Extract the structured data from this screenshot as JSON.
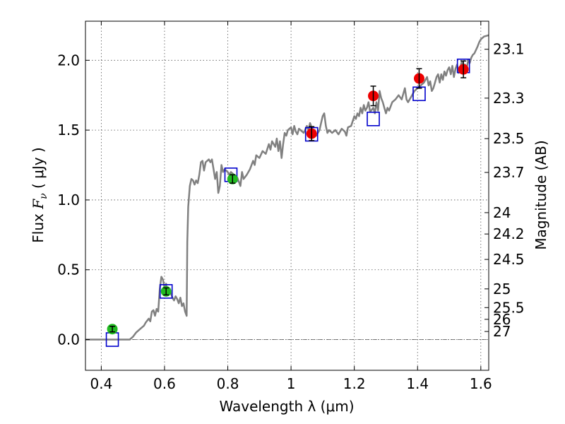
{
  "chart_data": {
    "type": "scatter",
    "xlabel": "Wavelength  λ (μm)",
    "ylabel_text": "Flux ",
    "ylabel_italic": "F",
    "ylabel_sub": "ν",
    "ylabel_unit": " ( μJy )",
    "ylabel2": "Magnitude (AB)",
    "xlim": [
      0.35,
      1.625
    ],
    "ylim": [
      -0.22,
      2.28
    ],
    "grid": true,
    "x_ticks": [
      {
        "value": 0.4,
        "label": "0.4"
      },
      {
        "value": 0.6,
        "label": "0.6"
      },
      {
        "value": 0.8,
        "label": "0.8"
      },
      {
        "value": 1.0,
        "label": "1"
      },
      {
        "value": 1.2,
        "label": "1.2"
      },
      {
        "value": 1.4,
        "label": "1.4"
      },
      {
        "value": 1.6,
        "label": "1.6"
      }
    ],
    "y_ticks": [
      {
        "value": 0.0,
        "label": "0.0"
      },
      {
        "value": 0.5,
        "label": "0.5"
      },
      {
        "value": 1.0,
        "label": "1.0"
      },
      {
        "value": 1.5,
        "label": "1.5"
      },
      {
        "value": 2.0,
        "label": "2.0"
      }
    ],
    "mag_ticks": [
      {
        "label": "23.1",
        "flux": 2.079
      },
      {
        "label": "23.3",
        "flux": 1.729
      },
      {
        "label": "23.5",
        "flux": 1.439
      },
      {
        "label": "23.7",
        "flux": 1.197
      },
      {
        "label": "24",
        "flux": 0.909
      },
      {
        "label": "24.2",
        "flux": 0.756
      },
      {
        "label": "24.5",
        "flux": 0.574
      },
      {
        "label": "25",
        "flux": 0.363
      },
      {
        "label": "25.5",
        "flux": 0.229
      },
      {
        "label": "26",
        "flux": 0.145
      },
      {
        "label": "27",
        "flux": 0.058
      }
    ],
    "zero_line": 0.0,
    "colors": {
      "spectrum": "#808080",
      "model": "#0000cc",
      "green": "#22bb22",
      "red": "#ee0000",
      "errorbar": "#000000",
      "grid": "#555555"
    },
    "spectrum": [
      [
        0.35,
        0.0
      ],
      [
        0.49,
        0.0
      ],
      [
        0.5,
        0.02
      ],
      [
        0.51,
        0.05
      ],
      [
        0.52,
        0.07
      ],
      [
        0.535,
        0.1
      ],
      [
        0.54,
        0.12
      ],
      [
        0.55,
        0.15
      ],
      [
        0.555,
        0.13
      ],
      [
        0.56,
        0.2
      ],
      [
        0.565,
        0.21
      ],
      [
        0.57,
        0.17
      ],
      [
        0.575,
        0.22
      ],
      [
        0.58,
        0.2
      ],
      [
        0.585,
        0.36
      ],
      [
        0.59,
        0.45
      ],
      [
        0.595,
        0.43
      ],
      [
        0.6,
        0.37
      ],
      [
        0.605,
        0.4
      ],
      [
        0.61,
        0.32
      ],
      [
        0.615,
        0.36
      ],
      [
        0.62,
        0.33
      ],
      [
        0.625,
        0.3
      ],
      [
        0.63,
        0.28
      ],
      [
        0.635,
        0.31
      ],
      [
        0.64,
        0.29
      ],
      [
        0.645,
        0.26
      ],
      [
        0.65,
        0.3
      ],
      [
        0.655,
        0.24
      ],
      [
        0.66,
        0.26
      ],
      [
        0.665,
        0.2
      ],
      [
        0.67,
        0.17
      ],
      [
        0.672,
        0.7
      ],
      [
        0.675,
        0.95
      ],
      [
        0.68,
        1.1
      ],
      [
        0.685,
        1.15
      ],
      [
        0.69,
        1.14
      ],
      [
        0.695,
        1.11
      ],
      [
        0.7,
        1.14
      ],
      [
        0.705,
        1.12
      ],
      [
        0.71,
        1.18
      ],
      [
        0.715,
        1.27
      ],
      [
        0.72,
        1.28
      ],
      [
        0.725,
        1.21
      ],
      [
        0.73,
        1.27
      ],
      [
        0.74,
        1.29
      ],
      [
        0.745,
        1.27
      ],
      [
        0.75,
        1.29
      ],
      [
        0.755,
        1.22
      ],
      [
        0.76,
        1.15
      ],
      [
        0.765,
        1.2
      ],
      [
        0.77,
        1.05
      ],
      [
        0.775,
        1.1
      ],
      [
        0.78,
        1.25
      ],
      [
        0.785,
        1.2
      ],
      [
        0.79,
        1.22
      ],
      [
        0.8,
        1.2
      ],
      [
        0.805,
        1.18
      ],
      [
        0.81,
        1.2
      ],
      [
        0.82,
        1.18
      ],
      [
        0.83,
        1.16
      ],
      [
        0.84,
        1.1
      ],
      [
        0.845,
        1.2
      ],
      [
        0.85,
        1.15
      ],
      [
        0.86,
        1.18
      ],
      [
        0.87,
        1.22
      ],
      [
        0.88,
        1.28
      ],
      [
        0.885,
        1.25
      ],
      [
        0.89,
        1.32
      ],
      [
        0.9,
        1.3
      ],
      [
        0.91,
        1.35
      ],
      [
        0.92,
        1.33
      ],
      [
        0.93,
        1.4
      ],
      [
        0.935,
        1.36
      ],
      [
        0.94,
        1.42
      ],
      [
        0.95,
        1.38
      ],
      [
        0.955,
        1.44
      ],
      [
        0.96,
        1.35
      ],
      [
        0.965,
        1.42
      ],
      [
        0.97,
        1.3
      ],
      [
        0.975,
        1.4
      ],
      [
        0.98,
        1.48
      ],
      [
        0.985,
        1.46
      ],
      [
        0.99,
        1.5
      ],
      [
        1.0,
        1.52
      ],
      [
        1.005,
        1.47
      ],
      [
        1.01,
        1.53
      ],
      [
        1.015,
        1.49
      ],
      [
        1.02,
        1.47
      ],
      [
        1.025,
        1.51
      ],
      [
        1.03,
        1.5
      ],
      [
        1.04,
        1.48
      ],
      [
        1.05,
        1.53
      ],
      [
        1.055,
        1.5
      ],
      [
        1.06,
        1.55
      ],
      [
        1.065,
        1.52
      ],
      [
        1.07,
        1.48
      ],
      [
        1.075,
        1.5
      ],
      [
        1.08,
        1.46
      ],
      [
        1.09,
        1.5
      ],
      [
        1.095,
        1.55
      ],
      [
        1.1,
        1.6
      ],
      [
        1.105,
        1.62
      ],
      [
        1.11,
        1.53
      ],
      [
        1.115,
        1.48
      ],
      [
        1.12,
        1.5
      ],
      [
        1.13,
        1.48
      ],
      [
        1.14,
        1.5
      ],
      [
        1.15,
        1.47
      ],
      [
        1.16,
        1.51
      ],
      [
        1.17,
        1.49
      ],
      [
        1.175,
        1.46
      ],
      [
        1.18,
        1.52
      ],
      [
        1.19,
        1.53
      ],
      [
        1.2,
        1.6
      ],
      [
        1.205,
        1.58
      ],
      [
        1.21,
        1.62
      ],
      [
        1.215,
        1.6
      ],
      [
        1.22,
        1.66
      ],
      [
        1.225,
        1.62
      ],
      [
        1.23,
        1.68
      ],
      [
        1.235,
        1.64
      ],
      [
        1.24,
        1.66
      ],
      [
        1.245,
        1.7
      ],
      [
        1.25,
        1.63
      ],
      [
        1.26,
        1.66
      ],
      [
        1.265,
        1.62
      ],
      [
        1.27,
        1.7
      ],
      [
        1.275,
        1.64
      ],
      [
        1.28,
        1.78
      ],
      [
        1.285,
        1.73
      ],
      [
        1.29,
        1.7
      ],
      [
        1.295,
        1.66
      ],
      [
        1.3,
        1.62
      ],
      [
        1.305,
        1.66
      ],
      [
        1.31,
        1.64
      ],
      [
        1.32,
        1.7
      ],
      [
        1.33,
        1.72
      ],
      [
        1.34,
        1.75
      ],
      [
        1.35,
        1.72
      ],
      [
        1.36,
        1.8
      ],
      [
        1.365,
        1.72
      ],
      [
        1.37,
        1.7
      ],
      [
        1.38,
        1.74
      ],
      [
        1.39,
        1.78
      ],
      [
        1.4,
        1.8
      ],
      [
        1.41,
        1.82
      ],
      [
        1.42,
        1.84
      ],
      [
        1.425,
        1.86
      ],
      [
        1.43,
        1.88
      ],
      [
        1.435,
        1.82
      ],
      [
        1.44,
        1.85
      ],
      [
        1.445,
        1.78
      ],
      [
        1.45,
        1.8
      ],
      [
        1.455,
        1.84
      ],
      [
        1.46,
        1.88
      ],
      [
        1.465,
        1.9
      ],
      [
        1.47,
        1.84
      ],
      [
        1.475,
        1.9
      ],
      [
        1.48,
        1.86
      ],
      [
        1.485,
        1.92
      ],
      [
        1.49,
        1.89
      ],
      [
        1.495,
        1.93
      ],
      [
        1.5,
        1.95
      ],
      [
        1.505,
        1.9
      ],
      [
        1.51,
        1.96
      ],
      [
        1.515,
        1.88
      ],
      [
        1.52,
        1.94
      ],
      [
        1.525,
        1.97
      ],
      [
        1.53,
        1.91
      ],
      [
        1.535,
        1.95
      ],
      [
        1.54,
        1.99
      ],
      [
        1.545,
        1.95
      ],
      [
        1.55,
        1.97
      ],
      [
        1.555,
        1.94
      ],
      [
        1.56,
        2.0
      ],
      [
        1.565,
        1.98
      ],
      [
        1.57,
        2.02
      ],
      [
        1.575,
        2.04
      ],
      [
        1.58,
        2.05
      ],
      [
        1.59,
        2.1
      ],
      [
        1.595,
        2.13
      ],
      [
        1.6,
        2.15
      ],
      [
        1.61,
        2.17
      ],
      [
        1.625,
        2.18
      ]
    ],
    "model_points": [
      {
        "x": 0.435,
        "y": 0.0
      },
      {
        "x": 0.605,
        "y": 0.345
      },
      {
        "x": 0.81,
        "y": 1.18
      },
      {
        "x": 1.065,
        "y": 1.47
      },
      {
        "x": 1.26,
        "y": 1.58
      },
      {
        "x": 1.405,
        "y": 1.76
      },
      {
        "x": 1.545,
        "y": 1.96
      }
    ],
    "observed_points": [
      {
        "x": 0.435,
        "y": 0.075,
        "err": 0.02,
        "color": "green"
      },
      {
        "x": 0.605,
        "y": 0.345,
        "err": 0.025,
        "color": "green"
      },
      {
        "x": 0.815,
        "y": 1.15,
        "err": 0.03,
        "color": "green"
      },
      {
        "x": 1.065,
        "y": 1.475,
        "err": 0.05,
        "color": "red"
      },
      {
        "x": 1.26,
        "y": 1.745,
        "err": 0.07,
        "color": "red"
      },
      {
        "x": 1.405,
        "y": 1.87,
        "err": 0.07,
        "color": "red"
      },
      {
        "x": 1.545,
        "y": 1.935,
        "err": 0.06,
        "color": "red"
      }
    ]
  }
}
